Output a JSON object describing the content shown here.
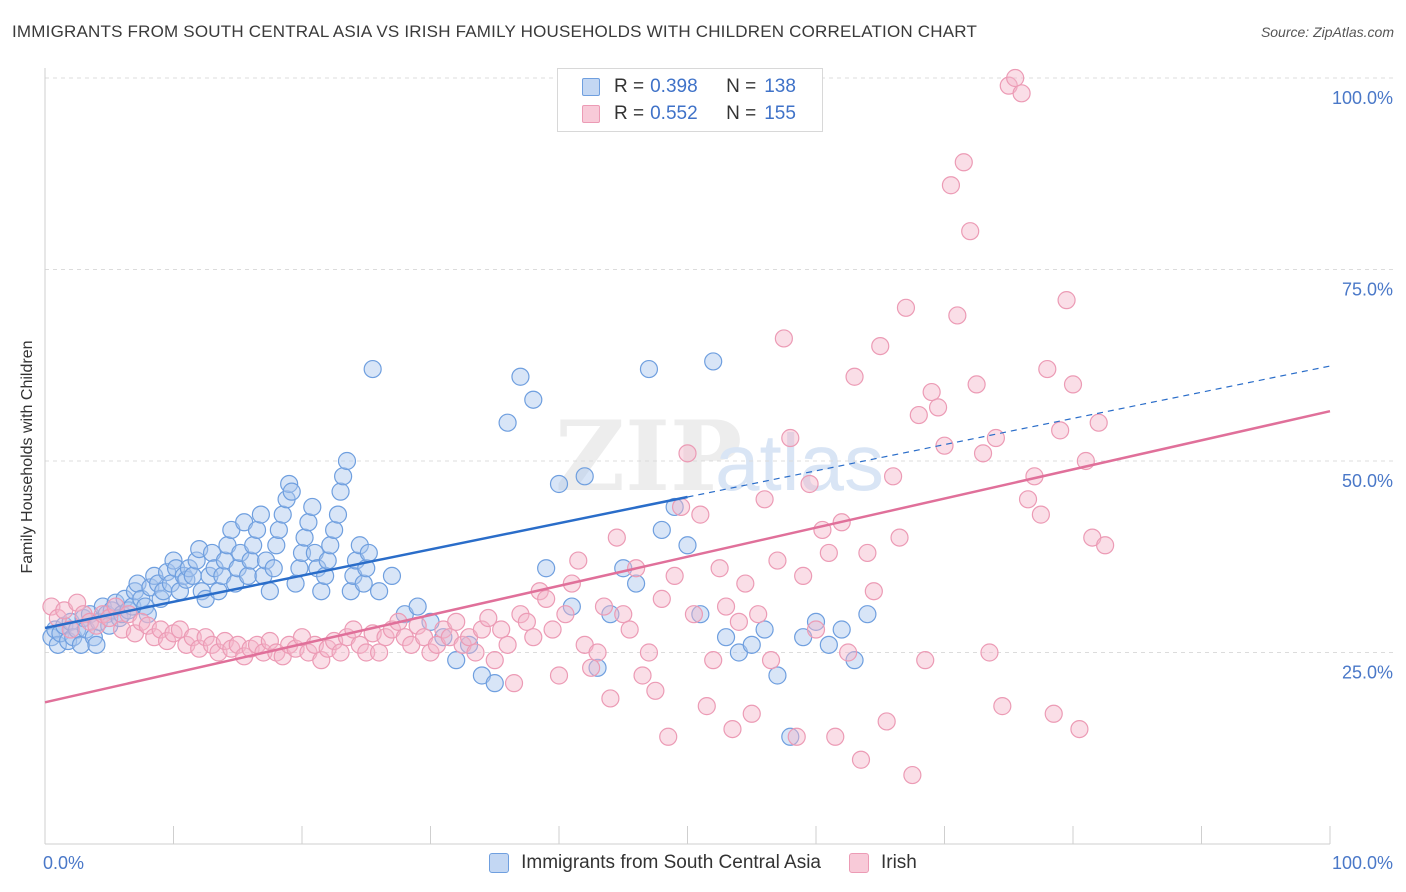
{
  "title": "IMMIGRANTS FROM SOUTH CENTRAL ASIA VS IRISH FAMILY HOUSEHOLDS WITH CHILDREN CORRELATION CHART",
  "source": "Source: ZipAtlas.com",
  "watermark": {
    "zip": "ZIP",
    "atlas": "atlas"
  },
  "legend": {
    "r_label": "R =",
    "n_label": "N =",
    "series1": {
      "r": "0.398",
      "n": "138"
    },
    "series2": {
      "r": "0.552",
      "n": "155"
    }
  },
  "colors": {
    "blue_fill": "#a9c6ee",
    "blue_stroke": "#6f9fdf",
    "blue_line": "#2a6dc9",
    "pink_fill": "#f5b6c9",
    "pink_stroke": "#ec9bb5",
    "pink_line": "#e0709a",
    "axis_text": "#4a78c8",
    "grid": "#dcdcdc"
  },
  "chart_data": {
    "type": "scatter",
    "title": "IMMIGRANTS FROM SOUTH CENTRAL ASIA VS IRISH FAMILY HOUSEHOLDS WITH CHILDREN CORRELATION CHART",
    "xlabel": "",
    "ylabel": "Family Households with Children",
    "x_tick_labels": [
      "0.0%",
      "100.0%"
    ],
    "y_tick_labels": [
      "25.0%",
      "50.0%",
      "75.0%",
      "100.0%"
    ],
    "xlim": [
      0,
      100
    ],
    "ylim": [
      0,
      100
    ],
    "grid": true,
    "legend_position": "top-center",
    "series": [
      {
        "name": "Immigrants from South Central Asia",
        "color": "#6f9fdf",
        "trend": {
          "x0": 0,
          "y0": 28.2,
          "x1": 50,
          "y1": 45.3,
          "dashed_to": 100,
          "dashed_y": 62.4
        },
        "points": [
          [
            0.5,
            27
          ],
          [
            0.8,
            28
          ],
          [
            1,
            26
          ],
          [
            1.2,
            27.5
          ],
          [
            1.5,
            28.5
          ],
          [
            1.8,
            26.5
          ],
          [
            2,
            29
          ],
          [
            2.2,
            27
          ],
          [
            2.5,
            28
          ],
          [
            2.8,
            26
          ],
          [
            3,
            29.5
          ],
          [
            3.2,
            28
          ],
          [
            3.5,
            30
          ],
          [
            3.8,
            27
          ],
          [
            4,
            26
          ],
          [
            4.2,
            29
          ],
          [
            4.5,
            31
          ],
          [
            4.8,
            30
          ],
          [
            5,
            28.5
          ],
          [
            5.2,
            30.5
          ],
          [
            5.5,
            31.5
          ],
          [
            5.8,
            29.5
          ],
          [
            6,
            30
          ],
          [
            6.2,
            32
          ],
          [
            6.5,
            30.5
          ],
          [
            6.8,
            31
          ],
          [
            7,
            33
          ],
          [
            7.2,
            34
          ],
          [
            7.5,
            32
          ],
          [
            7.8,
            31
          ],
          [
            8,
            30
          ],
          [
            8.2,
            33.5
          ],
          [
            8.5,
            35
          ],
          [
            8.8,
            34
          ],
          [
            9,
            32
          ],
          [
            9.2,
            33
          ],
          [
            9.5,
            35.5
          ],
          [
            9.8,
            34
          ],
          [
            10,
            37
          ],
          [
            10.2,
            36
          ],
          [
            10.5,
            33
          ],
          [
            10.8,
            35
          ],
          [
            11,
            34.5
          ],
          [
            11.2,
            36
          ],
          [
            11.5,
            35
          ],
          [
            11.8,
            37
          ],
          [
            12,
            38.5
          ],
          [
            12.2,
            33
          ],
          [
            12.5,
            32
          ],
          [
            12.8,
            35
          ],
          [
            13,
            38
          ],
          [
            13.2,
            36
          ],
          [
            13.5,
            33
          ],
          [
            13.8,
            35
          ],
          [
            14,
            37
          ],
          [
            14.2,
            39
          ],
          [
            14.5,
            41
          ],
          [
            14.8,
            34
          ],
          [
            15,
            36
          ],
          [
            15.2,
            38
          ],
          [
            15.5,
            42
          ],
          [
            15.8,
            35
          ],
          [
            16,
            37
          ],
          [
            16.2,
            39
          ],
          [
            16.5,
            41
          ],
          [
            16.8,
            43
          ],
          [
            17,
            35
          ],
          [
            17.2,
            37
          ],
          [
            17.5,
            33
          ],
          [
            17.8,
            36
          ],
          [
            18,
            39
          ],
          [
            18.2,
            41
          ],
          [
            18.5,
            43
          ],
          [
            18.8,
            45
          ],
          [
            19,
            47
          ],
          [
            19.2,
            46
          ],
          [
            19.5,
            34
          ],
          [
            19.8,
            36
          ],
          [
            20,
            38
          ],
          [
            20.2,
            40
          ],
          [
            20.5,
            42
          ],
          [
            20.8,
            44
          ],
          [
            21,
            38
          ],
          [
            21.2,
            36
          ],
          [
            21.5,
            33
          ],
          [
            21.8,
            35
          ],
          [
            22,
            37
          ],
          [
            22.2,
            39
          ],
          [
            22.5,
            41
          ],
          [
            22.8,
            43
          ],
          [
            23,
            46
          ],
          [
            23.2,
            48
          ],
          [
            23.5,
            50
          ],
          [
            23.8,
            33
          ],
          [
            24,
            35
          ],
          [
            24.2,
            37
          ],
          [
            24.5,
            39
          ],
          [
            24.8,
            34
          ],
          [
            25,
            36
          ],
          [
            25.2,
            38
          ],
          [
            25.5,
            62
          ],
          [
            26,
            33
          ],
          [
            27,
            35
          ],
          [
            28,
            30
          ],
          [
            29,
            31
          ],
          [
            30,
            29
          ],
          [
            31,
            27
          ],
          [
            32,
            24
          ],
          [
            33,
            26
          ],
          [
            34,
            22
          ],
          [
            35,
            21
          ],
          [
            36,
            55
          ],
          [
            37,
            61
          ],
          [
            38,
            58
          ],
          [
            39,
            36
          ],
          [
            40,
            47
          ],
          [
            41,
            31
          ],
          [
            42,
            48
          ],
          [
            43,
            23
          ],
          [
            44,
            30
          ],
          [
            45,
            36
          ],
          [
            46,
            34
          ],
          [
            47,
            62
          ],
          [
            48,
            41
          ],
          [
            49,
            44
          ],
          [
            50,
            39
          ],
          [
            51,
            30
          ],
          [
            52,
            63
          ],
          [
            53,
            27
          ],
          [
            54,
            25
          ],
          [
            55,
            26
          ],
          [
            56,
            28
          ],
          [
            57,
            22
          ],
          [
            58,
            14
          ],
          [
            59,
            27
          ],
          [
            60,
            29
          ],
          [
            61,
            26
          ],
          [
            62,
            28
          ],
          [
            63,
            24
          ],
          [
            64,
            30
          ]
        ]
      },
      {
        "name": "Irish",
        "color": "#ec9bb5",
        "trend": {
          "x0": 0,
          "y0": 18.5,
          "x1": 100,
          "y1": 56.5
        },
        "points": [
          [
            0.5,
            31
          ],
          [
            1,
            29.5
          ],
          [
            1.5,
            30.5
          ],
          [
            2,
            28
          ],
          [
            2.5,
            31.5
          ],
          [
            3,
            30
          ],
          [
            3.5,
            29
          ],
          [
            4,
            28.5
          ],
          [
            4.5,
            30
          ],
          [
            5,
            29.5
          ],
          [
            5.5,
            31
          ],
          [
            6,
            28
          ],
          [
            6.5,
            30
          ],
          [
            7,
            27.5
          ],
          [
            7.5,
            29
          ],
          [
            8,
            28.5
          ],
          [
            8.5,
            27
          ],
          [
            9,
            28
          ],
          [
            9.5,
            26.5
          ],
          [
            10,
            27.5
          ],
          [
            10.5,
            28
          ],
          [
            11,
            26
          ],
          [
            11.5,
            27
          ],
          [
            12,
            25.5
          ],
          [
            12.5,
            27
          ],
          [
            13,
            26
          ],
          [
            13.5,
            25
          ],
          [
            14,
            26.5
          ],
          [
            14.5,
            25.5
          ],
          [
            15,
            26
          ],
          [
            15.5,
            24.5
          ],
          [
            16,
            25.5
          ],
          [
            16.5,
            26
          ],
          [
            17,
            25
          ],
          [
            17.5,
            26.5
          ],
          [
            18,
            25
          ],
          [
            18.5,
            24.5
          ],
          [
            19,
            26
          ],
          [
            19.5,
            25.5
          ],
          [
            20,
            27
          ],
          [
            20.5,
            25
          ],
          [
            21,
            26
          ],
          [
            21.5,
            24
          ],
          [
            22,
            25.5
          ],
          [
            22.5,
            26.5
          ],
          [
            23,
            25
          ],
          [
            23.5,
            27
          ],
          [
            24,
            28
          ],
          [
            24.5,
            26
          ],
          [
            25,
            25
          ],
          [
            25.5,
            27.5
          ],
          [
            26,
            25
          ],
          [
            26.5,
            27
          ],
          [
            27,
            28
          ],
          [
            27.5,
            29
          ],
          [
            28,
            27
          ],
          [
            28.5,
            26
          ],
          [
            29,
            28.5
          ],
          [
            29.5,
            27
          ],
          [
            30,
            25
          ],
          [
            30.5,
            26
          ],
          [
            31,
            28
          ],
          [
            31.5,
            27
          ],
          [
            32,
            29
          ],
          [
            32.5,
            26
          ],
          [
            33,
            27
          ],
          [
            33.5,
            25
          ],
          [
            34,
            28
          ],
          [
            34.5,
            29.5
          ],
          [
            35,
            24
          ],
          [
            35.5,
            28
          ],
          [
            36,
            26
          ],
          [
            36.5,
            21
          ],
          [
            37,
            30
          ],
          [
            37.5,
            29
          ],
          [
            38,
            27
          ],
          [
            38.5,
            33
          ],
          [
            39,
            32
          ],
          [
            39.5,
            28
          ],
          [
            40,
            22
          ],
          [
            40.5,
            30
          ],
          [
            41,
            34
          ],
          [
            41.5,
            37
          ],
          [
            42,
            26
          ],
          [
            42.5,
            23
          ],
          [
            43,
            25
          ],
          [
            43.5,
            31
          ],
          [
            44,
            19
          ],
          [
            44.5,
            40
          ],
          [
            45,
            30
          ],
          [
            45.5,
            28
          ],
          [
            46,
            36
          ],
          [
            46.5,
            22
          ],
          [
            47,
            25
          ],
          [
            47.5,
            20
          ],
          [
            48,
            32
          ],
          [
            48.5,
            14
          ],
          [
            49,
            35
          ],
          [
            49.5,
            44
          ],
          [
            50,
            51
          ],
          [
            50.5,
            30
          ],
          [
            51,
            43
          ],
          [
            51.5,
            18
          ],
          [
            52,
            24
          ],
          [
            52.5,
            36
          ],
          [
            53,
            31
          ],
          [
            53.5,
            15
          ],
          [
            54,
            29
          ],
          [
            54.5,
            34
          ],
          [
            55,
            17
          ],
          [
            55.5,
            30
          ],
          [
            56,
            45
          ],
          [
            56.5,
            24
          ],
          [
            57,
            37
          ],
          [
            57.5,
            66
          ],
          [
            58,
            53
          ],
          [
            58.5,
            14
          ],
          [
            59,
            35
          ],
          [
            59.5,
            47
          ],
          [
            60,
            28
          ],
          [
            60.5,
            41
          ],
          [
            61,
            38
          ],
          [
            61.5,
            14
          ],
          [
            62,
            42
          ],
          [
            62.5,
            25
          ],
          [
            63,
            61
          ],
          [
            63.5,
            11
          ],
          [
            64,
            38
          ],
          [
            64.5,
            33
          ],
          [
            65,
            65
          ],
          [
            65.5,
            16
          ],
          [
            66,
            48
          ],
          [
            66.5,
            40
          ],
          [
            67,
            70
          ],
          [
            67.5,
            9
          ],
          [
            68,
            56
          ],
          [
            68.5,
            24
          ],
          [
            69,
            59
          ],
          [
            69.5,
            57
          ],
          [
            70,
            52
          ],
          [
            70.5,
            86
          ],
          [
            71,
            69
          ],
          [
            71.5,
            89
          ],
          [
            72,
            80
          ],
          [
            72.5,
            60
          ],
          [
            73,
            51
          ],
          [
            73.5,
            25
          ],
          [
            74,
            53
          ],
          [
            74.5,
            18
          ],
          [
            75,
            99
          ],
          [
            75.5,
            100
          ],
          [
            76,
            98
          ],
          [
            76.5,
            45
          ],
          [
            77,
            48
          ],
          [
            77.5,
            43
          ],
          [
            78,
            62
          ],
          [
            78.5,
            17
          ],
          [
            79,
            54
          ],
          [
            79.5,
            71
          ],
          [
            80,
            60
          ],
          [
            80.5,
            15
          ],
          [
            81,
            50
          ],
          [
            81.5,
            40
          ],
          [
            82,
            55
          ],
          [
            82.5,
            39
          ]
        ]
      }
    ]
  }
}
